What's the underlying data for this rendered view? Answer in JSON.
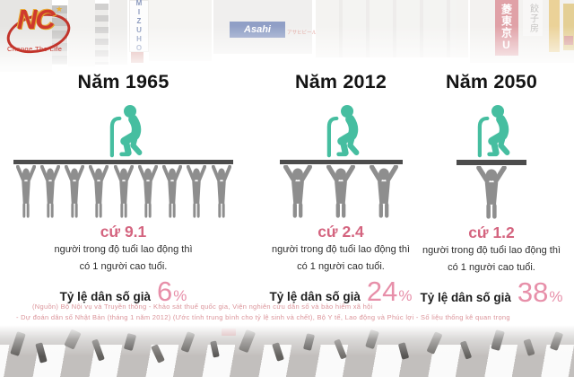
{
  "logo": {
    "initials": "NC",
    "tagline": "Change The Life"
  },
  "photo_signs": {
    "mizuho": "MIZUHO",
    "asahi": "Asahi",
    "asahi_beer": "アサヒビール",
    "bank_sign": "菱東京U",
    "gyoza": "餃子房"
  },
  "columns": [
    {
      "year_label": "Năm 1965",
      "ratio_label": "cứ 9.1",
      "desc_line1": "người trong độ tuổi lao động thì",
      "desc_line2": "có 1 người cao tuổi.",
      "rate_label": "Tỷ lệ dân số già",
      "rate_value": "6",
      "rate_unit": "%",
      "workers": 9
    },
    {
      "year_label": "Năm 2012",
      "ratio_label": "cứ 2.4",
      "desc_line1": "người trong độ tuổi lao động thì",
      "desc_line2": "có 1 người cao tuổi.",
      "rate_label": "Tỷ lệ dân số già",
      "rate_value": "24",
      "rate_unit": "%",
      "workers": 3
    },
    {
      "year_label": "Năm 2050",
      "ratio_label": "cứ 1.2",
      "desc_line1": "người trong độ tuổi lao động thì",
      "desc_line2": "có 1 người cao tuổi.",
      "rate_label": "Tỷ lệ dân số già",
      "rate_value": "38",
      "rate_unit": "%",
      "workers": 1
    }
  ],
  "source": {
    "line1": "(Nguồn) Bộ Nội vụ và Truyền thông - Khảo sát thuế quốc gia, Viện nghiên cứu dân số và bảo hiểm xã hội",
    "line2": "- Dự đoán dân số Nhật Bản (tháng 1 năm 2012) (Ước tính trung bình cho tỷ lệ sinh và chết), Bộ Y tế, Lao động và Phúc lợi - Số liệu thống kê quan trọng"
  },
  "colors": {
    "teal": "#46BEA0",
    "pink_strong": "#d4647f",
    "pink_light": "#e78fa9",
    "pink_source": "#db949a",
    "figure_gray": "#8e8e8e",
    "platform": "#4c4c4c",
    "heading": "#141414"
  },
  "chart_data": {
    "type": "bar",
    "categories": [
      "Năm 1965",
      "Năm 2012",
      "Năm 2050"
    ],
    "series": [
      {
        "name": "Số người trong độ tuổi lao động trên 1 người cao tuổi",
        "values": [
          9.1,
          2.4,
          1.2
        ]
      },
      {
        "name": "Tỷ lệ dân số già (%)",
        "values": [
          6,
          24,
          38
        ]
      }
    ],
    "pictogram_worker_counts": [
      9,
      3,
      1
    ],
    "title": "",
    "xlabel": "",
    "ylabel": ""
  }
}
